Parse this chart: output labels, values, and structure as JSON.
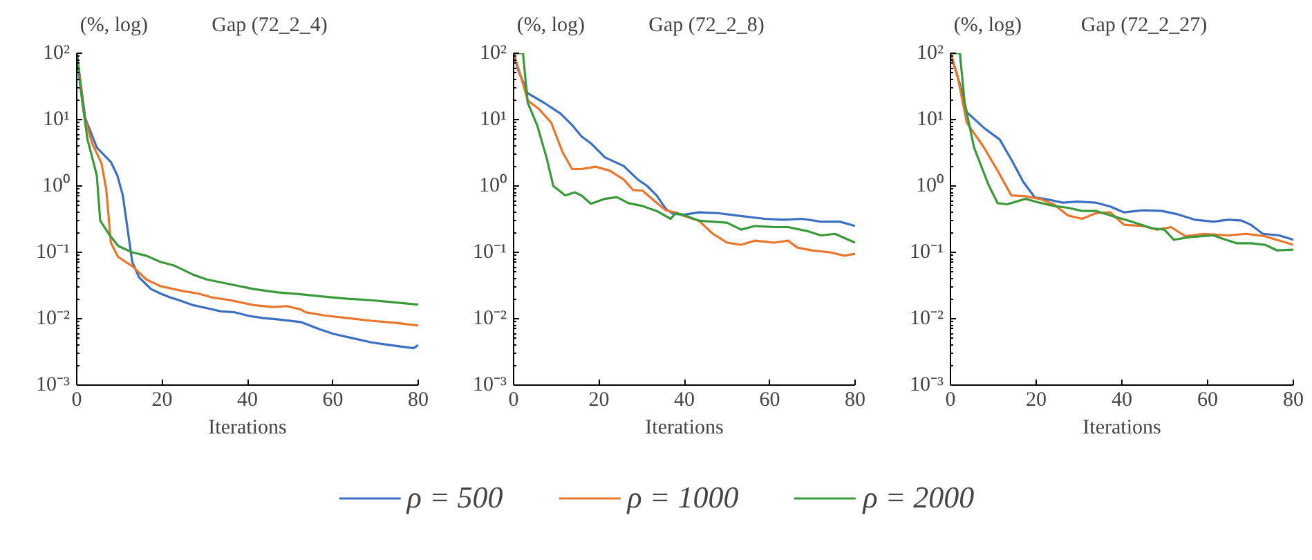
{
  "chart_data": [
    {
      "type": "line",
      "title": "Gap (72_2_4)",
      "ylabel": "(%, log)",
      "xlabel": "Iterations",
      "log": "y",
      "grid": false,
      "legend": "bottom",
      "line_style": "solid",
      "xlim": [
        0,
        80
      ],
      "xticks": [
        0,
        20,
        40,
        60,
        80
      ],
      "ylim": [
        0.001,
        100
      ],
      "yticks": [
        {
          "value": 0.001,
          "label": "10⁻³"
        },
        {
          "value": 0.01,
          "label": "10⁻²"
        },
        {
          "value": 0.1,
          "label": "10⁻¹"
        },
        {
          "value": 1,
          "label": "10⁰"
        },
        {
          "value": 10,
          "label": "10¹"
        },
        {
          "value": 100,
          "label": "10²"
        }
      ],
      "series": [
        {
          "name": "ρ = 500",
          "color": "#3b6fc2",
          "x": [
            0,
            2,
            4.7,
            8,
            9.5,
            10.8,
            13,
            14.6,
            17.4,
            19.6,
            21.8,
            24,
            27.3,
            30.5,
            33.8,
            37,
            40.4,
            43.7,
            47,
            52.5,
            57,
            60.2,
            64.6,
            69,
            73.4,
            78.9,
            80
          ],
          "values": [
            100,
            10.5,
            3.8,
            2.3,
            1.45,
            0.72,
            0.072,
            0.042,
            0.028,
            0.024,
            0.021,
            0.019,
            0.016,
            0.0144,
            0.0129,
            0.0125,
            0.011,
            0.0102,
            0.0098,
            0.0089,
            0.0069,
            0.0059,
            0.0051,
            0.0044,
            0.004,
            0.0036,
            0.004
          ]
        },
        {
          "name": "ρ = 1000",
          "color": "#e8762c",
          "x": [
            0,
            1.8,
            3.6,
            5.8,
            6.9,
            8,
            9.7,
            13,
            16.3,
            19.6,
            25,
            28.4,
            31.6,
            36,
            41.5,
            46,
            49.2,
            52.5,
            53.6,
            58,
            63.5,
            69,
            74.5,
            80
          ],
          "values": [
            100,
            11,
            4.4,
            2.2,
            0.9,
            0.14,
            0.085,
            0.062,
            0.039,
            0.031,
            0.026,
            0.024,
            0.021,
            0.019,
            0.016,
            0.015,
            0.0155,
            0.0138,
            0.0125,
            0.0112,
            0.0102,
            0.0093,
            0.0087,
            0.0079
          ]
        },
        {
          "name": "ρ = 2000",
          "color": "#3a9a3a",
          "x": [
            0,
            0.9,
            2.5,
            4.7,
            5.5,
            7.5,
            9.7,
            13,
            16.3,
            19.6,
            22.9,
            27.3,
            30.5,
            36,
            41.5,
            47,
            52.5,
            58,
            63.5,
            69,
            74.5,
            80
          ],
          "values": [
            100,
            29,
            5.1,
            1.45,
            0.3,
            0.19,
            0.125,
            0.1,
            0.089,
            0.072,
            0.063,
            0.046,
            0.039,
            0.033,
            0.028,
            0.025,
            0.0234,
            0.0215,
            0.02,
            0.019,
            0.0176,
            0.0163
          ]
        }
      ]
    },
    {
      "type": "line",
      "title": "Gap (72_2_8)",
      "ylabel": "(%, log)",
      "xlabel": "Iterations",
      "log": "y",
      "grid": false,
      "line_style": "solid",
      "xlim": [
        0,
        80
      ],
      "xticks": [
        0,
        20,
        40,
        60,
        80
      ],
      "ylim": [
        0.001,
        100
      ],
      "yticks": [
        {
          "value": 0.001,
          "label": "10⁻³"
        },
        {
          "value": 0.01,
          "label": "10⁻²"
        },
        {
          "value": 0.1,
          "label": "10⁻¹"
        },
        {
          "value": 1,
          "label": "10⁰"
        },
        {
          "value": 10,
          "label": "10¹"
        },
        {
          "value": 100,
          "label": "10²"
        }
      ],
      "series": [
        {
          "name": "ρ = 500",
          "color": "#3b6fc2",
          "x": [
            0,
            1.1,
            3.3,
            7.1,
            11,
            13.7,
            15.9,
            18.1,
            21.4,
            25.8,
            29.1,
            31.3,
            33.5,
            35.7,
            37.4,
            40.1,
            43.4,
            47.8,
            52.2,
            58.8,
            63.2,
            67.6,
            72,
            76.4,
            80
          ],
          "values": [
            100,
            55,
            25,
            18,
            12.3,
            8.3,
            5.6,
            4.4,
            2.7,
            2.0,
            1.25,
            1.0,
            0.72,
            0.45,
            0.38,
            0.37,
            0.4,
            0.39,
            0.36,
            0.32,
            0.31,
            0.32,
            0.29,
            0.29,
            0.25
          ]
        },
        {
          "name": "ρ = 1000",
          "color": "#e8762c",
          "x": [
            0,
            1.6,
            3.3,
            6,
            8.8,
            11.5,
            13.7,
            15.9,
            19.2,
            22.5,
            25.8,
            28,
            30.2,
            33.5,
            35.7,
            37.9,
            40.1,
            43.4,
            46.7,
            50,
            53.3,
            56.6,
            61,
            64.3,
            66.5,
            69.8,
            74.2,
            77.5,
            80
          ],
          "values": [
            100,
            47,
            19.5,
            14.3,
            9,
            3.2,
            1.8,
            1.8,
            1.95,
            1.7,
            1.25,
            0.87,
            0.85,
            0.56,
            0.43,
            0.4,
            0.35,
            0.3,
            0.19,
            0.14,
            0.13,
            0.15,
            0.14,
            0.15,
            0.118,
            0.107,
            0.1,
            0.089,
            0.095
          ]
        },
        {
          "name": "ρ = 2000",
          "color": "#3a9a3a",
          "x": [
            0,
            2.2,
            3.3,
            5.5,
            7.7,
            9.3,
            12.1,
            14.3,
            15.9,
            18.1,
            21.4,
            24.2,
            26.9,
            30.2,
            33.5,
            36.8,
            38,
            40.1,
            43.4,
            46.7,
            50,
            53.3,
            56.6,
            61,
            64.3,
            68.7,
            72,
            75.3,
            80
          ],
          "values": [
            100,
            100,
            18,
            8.3,
            2.7,
            1.0,
            0.72,
            0.8,
            0.72,
            0.54,
            0.64,
            0.68,
            0.55,
            0.5,
            0.42,
            0.32,
            0.39,
            0.36,
            0.3,
            0.29,
            0.28,
            0.22,
            0.25,
            0.24,
            0.24,
            0.21,
            0.18,
            0.19,
            0.14
          ]
        }
      ]
    },
    {
      "type": "line",
      "title": "Gap (72_2_27)",
      "ylabel": "(%, log)",
      "xlabel": "Iterations",
      "log": "y",
      "grid": false,
      "line_style": "solid",
      "xlim": [
        0,
        80
      ],
      "xticks": [
        0,
        20,
        40,
        60,
        80
      ],
      "ylim": [
        0.001,
        100
      ],
      "yticks": [
        {
          "value": 0.001,
          "label": "10⁻³"
        },
        {
          "value": 0.01,
          "label": "10⁻²"
        },
        {
          "value": 0.1,
          "label": "10⁻¹"
        },
        {
          "value": 1,
          "label": "10⁰"
        },
        {
          "value": 10,
          "label": "10¹"
        },
        {
          "value": 100,
          "label": "10²"
        }
      ],
      "series": [
        {
          "name": "ρ = 500",
          "color": "#3b6fc2",
          "x": [
            0,
            2.2,
            3.8,
            7.7,
            11.5,
            14.2,
            17,
            19.7,
            21.9,
            26.3,
            29.6,
            34,
            37.3,
            40.5,
            44.9,
            49.3,
            52.6,
            57,
            61.4,
            64.7,
            68,
            70.1,
            72.9,
            76.7,
            80
          ],
          "values": [
            100,
            34,
            13,
            7.6,
            5,
            2.5,
            1.15,
            0.67,
            0.64,
            0.56,
            0.58,
            0.56,
            0.49,
            0.4,
            0.43,
            0.42,
            0.38,
            0.31,
            0.29,
            0.31,
            0.3,
            0.26,
            0.19,
            0.18,
            0.155
          ]
        },
        {
          "name": "ρ = 1000",
          "color": "#e8762c",
          "x": [
            0,
            1.6,
            3.8,
            7.7,
            11,
            14.2,
            17.5,
            20.8,
            24.1,
            27.4,
            30.7,
            34,
            37.3,
            40.5,
            44.9,
            48.2,
            51.5,
            54.8,
            59.2,
            64.7,
            69,
            73.4,
            76.7,
            80
          ],
          "values": [
            100,
            47,
            9,
            3.9,
            1.7,
            0.72,
            0.7,
            0.64,
            0.53,
            0.36,
            0.32,
            0.39,
            0.4,
            0.26,
            0.25,
            0.22,
            0.24,
            0.175,
            0.19,
            0.18,
            0.19,
            0.175,
            0.15,
            0.13
          ]
        },
        {
          "name": "ρ = 2000",
          "color": "#3a9a3a",
          "x": [
            0,
            2.2,
            3.3,
            5.5,
            8.8,
            11,
            13.2,
            17.5,
            20.8,
            24.1,
            27.4,
            30.7,
            34,
            37.3,
            41.6,
            47.1,
            49.9,
            52.1,
            55.9,
            61.4,
            63.6,
            66.8,
            70.1,
            73.4,
            76.2,
            80
          ],
          "values": [
            100,
            100,
            18,
            3.8,
            1.07,
            0.55,
            0.53,
            0.64,
            0.56,
            0.5,
            0.47,
            0.42,
            0.42,
            0.36,
            0.3,
            0.23,
            0.22,
            0.155,
            0.17,
            0.18,
            0.16,
            0.137,
            0.137,
            0.13,
            0.107,
            0.11
          ]
        }
      ]
    }
  ]
}
